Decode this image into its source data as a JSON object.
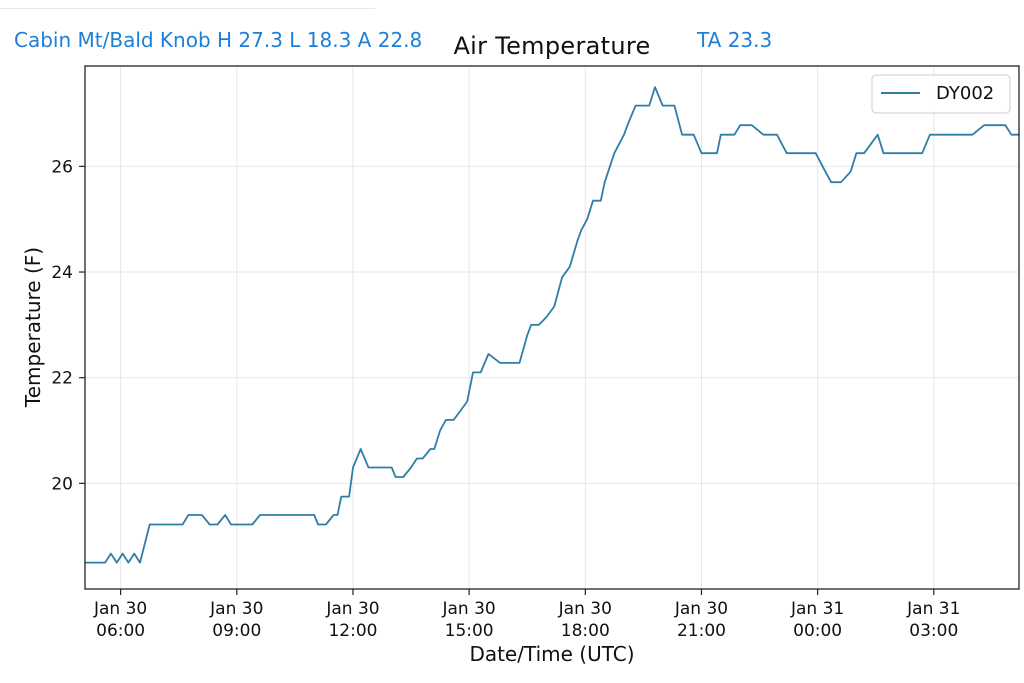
{
  "header": {
    "station_summary": "Cabin Mt/Bald Knob H 27.3 L 18.3 A 22.8",
    "ta_readout": "TA 23.3",
    "link_color": "#1e7fd8"
  },
  "chart_data": {
    "type": "line",
    "title": "Air Temperature",
    "xlabel": "Date/Time (UTC)",
    "ylabel": "Temperature (F)",
    "x_ticks": [
      {
        "label": "Jan 30\n06:00",
        "hours": 6
      },
      {
        "label": "Jan 30\n09:00",
        "hours": 9
      },
      {
        "label": "Jan 30\n12:00",
        "hours": 12
      },
      {
        "label": "Jan 30\n15:00",
        "hours": 15
      },
      {
        "label": "Jan 30\n18:00",
        "hours": 18
      },
      {
        "label": "Jan 30\n21:00",
        "hours": 21
      },
      {
        "label": "Jan 31\n00:00",
        "hours": 24
      },
      {
        "label": "Jan 31\n03:00",
        "hours": 27
      }
    ],
    "y_ticks": [
      20,
      22,
      24,
      26
    ],
    "xlim": [
      5.08,
      29.2
    ],
    "ylim": [
      18.0,
      27.9
    ],
    "grid": true,
    "legend_position": "top-right",
    "series": [
      {
        "name": "DY002",
        "color": "#2f7ea8",
        "x": [
          5.08,
          5.6,
          5.75,
          5.9,
          6.05,
          6.2,
          6.35,
          6.5,
          6.75,
          7.1,
          7.6,
          7.75,
          8.1,
          8.3,
          8.5,
          8.7,
          8.85,
          9.0,
          9.4,
          9.6,
          10.5,
          11.0,
          11.1,
          11.2,
          11.3,
          11.5,
          11.6,
          11.7,
          11.75,
          11.9,
          12.0,
          12.2,
          12.4,
          12.8,
          13.0,
          13.1,
          13.3,
          13.5,
          13.65,
          13.8,
          14.0,
          14.1,
          14.25,
          14.4,
          14.6,
          14.75,
          14.95,
          15.1,
          15.3,
          15.5,
          15.8,
          16.0,
          16.3,
          16.5,
          16.6,
          16.8,
          17.0,
          17.2,
          17.4,
          17.6,
          17.8,
          17.9,
          18.05,
          18.2,
          18.4,
          18.5,
          18.75,
          19.0,
          19.1,
          19.3,
          19.5,
          19.65,
          19.8,
          20.0,
          20.3,
          20.5,
          20.8,
          21.0,
          21.4,
          21.5,
          21.85,
          22.0,
          22.3,
          22.6,
          22.8,
          22.95,
          23.2,
          23.5,
          23.8,
          23.95,
          24.2,
          24.35,
          24.6,
          24.85,
          25.0,
          25.2,
          25.55,
          25.7,
          26.7,
          26.9,
          28.0,
          28.3,
          28.85,
          29.0,
          29.2
        ],
        "y": [
          18.5,
          18.5,
          18.67,
          18.5,
          18.67,
          18.5,
          18.67,
          18.5,
          19.22,
          19.22,
          19.22,
          19.4,
          19.4,
          19.22,
          19.22,
          19.4,
          19.22,
          19.22,
          19.22,
          19.4,
          19.4,
          19.4,
          19.22,
          19.22,
          19.22,
          19.4,
          19.4,
          19.75,
          19.75,
          19.75,
          20.3,
          20.65,
          20.3,
          20.3,
          20.3,
          20.12,
          20.12,
          20.3,
          20.47,
          20.47,
          20.65,
          20.65,
          21.0,
          21.2,
          21.2,
          21.35,
          21.55,
          22.1,
          22.1,
          22.45,
          22.28,
          22.28,
          22.28,
          22.8,
          23.0,
          23.0,
          23.15,
          23.35,
          23.9,
          24.1,
          24.6,
          24.8,
          25.0,
          25.35,
          25.35,
          25.7,
          26.25,
          26.6,
          26.8,
          27.15,
          27.15,
          27.15,
          27.5,
          27.15,
          27.15,
          26.6,
          26.6,
          26.25,
          26.25,
          26.6,
          26.6,
          26.78,
          26.78,
          26.6,
          26.6,
          26.6,
          26.25,
          26.25,
          26.25,
          26.25,
          25.9,
          25.7,
          25.7,
          25.9,
          26.25,
          26.25,
          26.6,
          26.25,
          26.25,
          26.6,
          26.6,
          26.78,
          26.78,
          26.6,
          26.6
        ]
      }
    ]
  }
}
